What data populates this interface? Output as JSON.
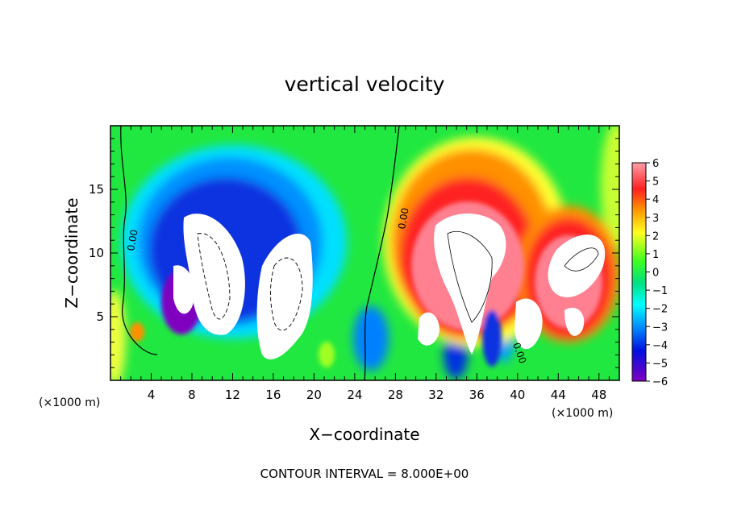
{
  "chart_data": {
    "type": "heatmap",
    "title": "vertical velocity",
    "xlabel": "X−coordinate",
    "ylabel": "Z−coordinate",
    "x_unit_left": "(×1000 m)",
    "x_unit_right": "(×1000 m)",
    "xlim": [
      0,
      50
    ],
    "ylim": [
      0,
      20
    ],
    "x_ticks": [
      4,
      8,
      12,
      16,
      20,
      24,
      28,
      32,
      36,
      40,
      44,
      48
    ],
    "y_ticks": [
      5,
      10,
      15
    ],
    "colorbar": {
      "labels": [
        "6",
        "5",
        "4",
        "3",
        "2",
        "1",
        "0",
        "−1",
        "−2",
        "−3",
        "−4",
        "−5",
        "−6"
      ],
      "range": [
        -6,
        6
      ]
    },
    "contour_labels": [
      "0.00",
      "0.00",
      "0.00"
    ],
    "footnote": "CONTOUR INTERVAL = 8.000E+00",
    "colors": {
      "red": "#ff2020",
      "white": "#ffffff",
      "blue": "#1020e0",
      "green": "#20f020",
      "yellow": "#ffff40",
      "purple": "#8000c0"
    }
  }
}
